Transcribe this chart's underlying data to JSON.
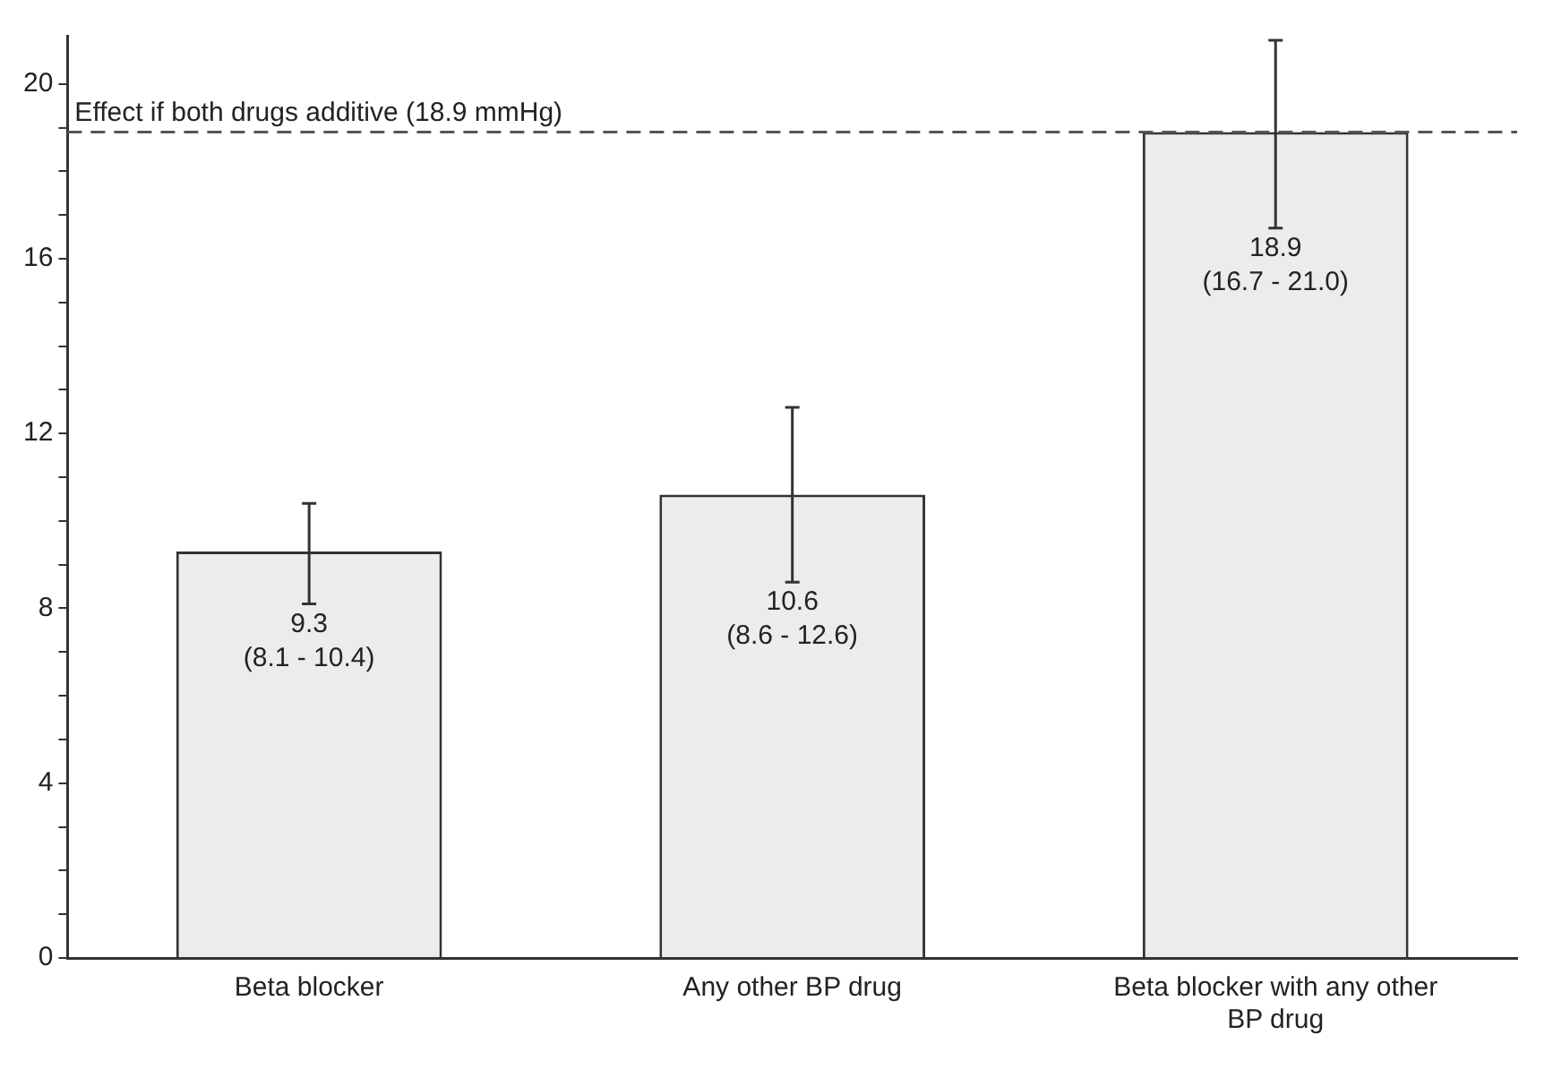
{
  "chart_data": {
    "type": "bar",
    "categories": [
      "Beta blocker",
      "Any other BP drug",
      "Beta blocker with any other BP drug"
    ],
    "values": [
      9.3,
      10.6,
      18.9
    ],
    "color": "#ececec",
    "errors": [
      [
        8.1,
        10.4
      ],
      [
        8.6,
        12.6
      ],
      [
        16.7,
        21.0
      ]
    ],
    "value_labels": [
      "9.3\n(8.1 - 10.4)",
      "10.6\n(8.6 - 12.6)",
      "18.9\n(16.7 - 21.0)"
    ],
    "ylim": [
      0,
      21.1
    ],
    "yticks": [
      0,
      {
        "value": 1,
        "label": null
      },
      {
        "value": 2,
        "label": null
      },
      {
        "value": 3,
        "label": null
      },
      4,
      {
        "value": 5,
        "label": null
      },
      {
        "value": 6,
        "label": null
      },
      {
        "value": 7,
        "label": null
      },
      8,
      {
        "value": 9,
        "label": null
      },
      {
        "value": 10,
        "label": null
      },
      {
        "value": 11,
        "label": null
      },
      12,
      {
        "value": 13,
        "label": null
      },
      {
        "value": 14,
        "label": null
      },
      {
        "value": 15,
        "label": null
      },
      16,
      {
        "value": 17,
        "label": null
      },
      {
        "value": 18,
        "label": null
      },
      {
        "value": 19,
        "label": null
      },
      20
    ],
    "ref_lines": [
      {
        "axis": "y",
        "value": 18.9,
        "label": "Effect if both drugs additive (18.9 mmHg)",
        "color": "#555555",
        "line_style": "dashed"
      }
    ],
    "grid": false,
    "legend": false
  }
}
